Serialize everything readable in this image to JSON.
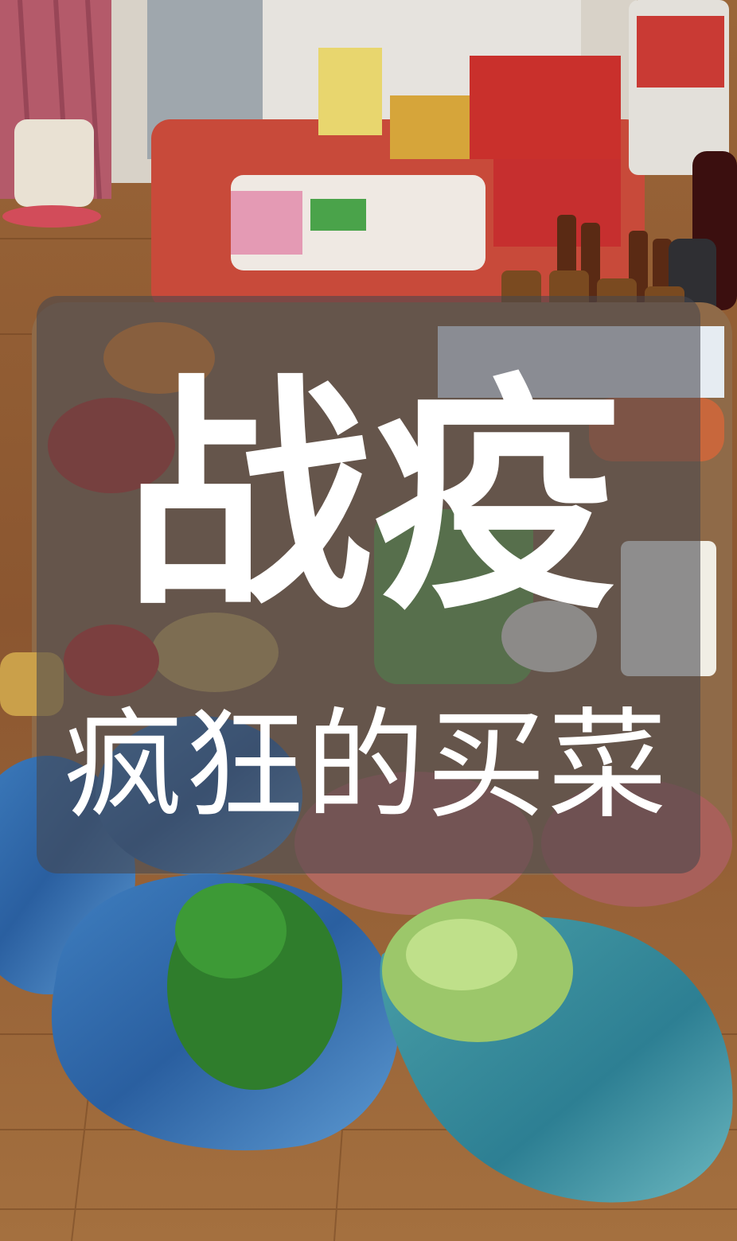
{
  "overlay": {
    "title": "战疫",
    "subtitle": "疯狂的买菜"
  },
  "colors": {
    "text": "#ffffff",
    "overlay": "#46464e",
    "floor": "#8a5a34"
  }
}
